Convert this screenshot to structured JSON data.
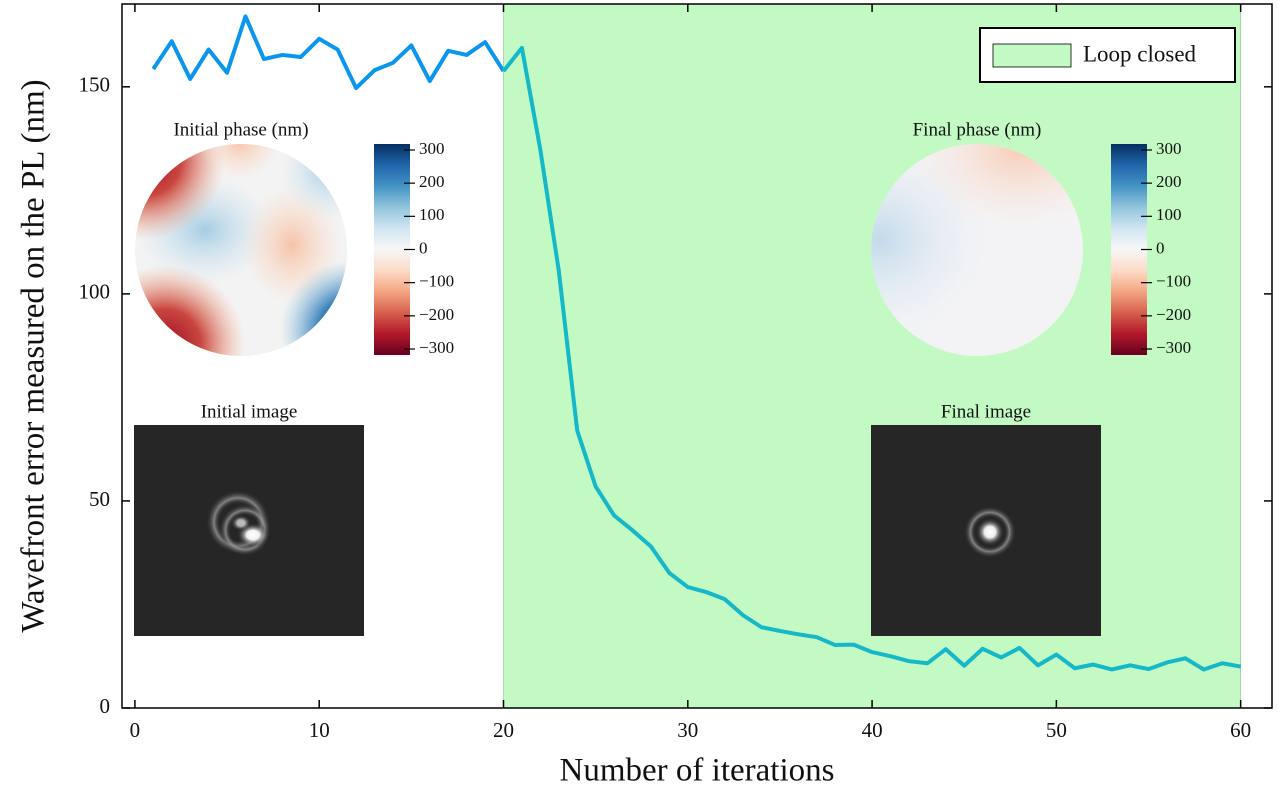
{
  "chart_data": {
    "type": "line",
    "xlabel": "Number of iterations",
    "ylabel": "Wavefront error measured on the PL (nm)",
    "xlim": [
      -0.7,
      61.7
    ],
    "ylim": [
      0,
      170
    ],
    "xticks": [
      0,
      10,
      20,
      30,
      40,
      50,
      60
    ],
    "yticks": [
      0,
      50,
      100,
      150
    ],
    "series": [
      {
        "color": "#0a96ee",
        "x": [
          1,
          2,
          3,
          4,
          5,
          6,
          7,
          8,
          9,
          10,
          11,
          12,
          13,
          14,
          15,
          16,
          17,
          18,
          19,
          20
        ],
        "values": [
          154.3,
          161,
          151.9,
          159,
          153.4,
          167,
          156.7,
          157.7,
          157.2,
          161.6,
          159,
          149.7,
          154,
          155.8,
          160,
          151.4,
          158.7,
          157.7,
          160.8,
          153.8
        ]
      },
      {
        "color": "#14b8c8",
        "x": [
          20,
          21,
          22,
          23,
          24,
          25,
          26,
          27,
          28,
          29,
          30,
          31,
          32,
          33,
          34,
          35,
          36,
          37,
          38,
          39,
          40,
          41,
          42,
          43,
          44,
          45,
          46,
          47,
          48,
          49,
          50,
          51,
          52,
          53,
          54,
          55,
          56,
          57,
          58,
          59,
          60
        ],
        "values": [
          153.8,
          159.4,
          134.8,
          105.6,
          67,
          53.5,
          46.5,
          42.9,
          39,
          32.6,
          29.2,
          28,
          26.3,
          22.4,
          19.5,
          18.6,
          17.8,
          17.1,
          15.2,
          15.3,
          13.5,
          12.5,
          11.3,
          10.8,
          14.2,
          10.2,
          14.3,
          12.2,
          14.5,
          10.3,
          12.9,
          9.6,
          10.5,
          9.3,
          10.3,
          9.4,
          11,
          12,
          9.3,
          10.8,
          10
        ]
      }
    ],
    "shaded_region": {
      "label": "Loop closed",
      "xmin": 20,
      "xmax": 60,
      "color": "#c3fac3"
    },
    "legend": "upper right",
    "insets": [
      {
        "title": "Initial phase (nm)",
        "kind": "phase",
        "colorbar_lim": [
          -318,
          318
        ],
        "colorbar_ticks": [
          {
            "value": 300,
            "label": "300"
          },
          {
            "value": 200,
            "label": "200"
          },
          {
            "value": 100,
            "label": "100"
          },
          {
            "value": 0,
            "label": "0"
          },
          {
            "value": -100,
            "label": "−100"
          },
          {
            "value": -200,
            "label": "−200"
          },
          {
            "value": -300,
            "label": "−300"
          }
        ]
      },
      {
        "title": "Final phase (nm)",
        "kind": "phase",
        "colorbar_lim": [
          -318,
          318
        ],
        "colorbar_ticks": [
          {
            "value": 300,
            "label": "300"
          },
          {
            "value": 200,
            "label": "200"
          },
          {
            "value": 100,
            "label": "100"
          },
          {
            "value": 0,
            "label": "0"
          },
          {
            "value": -100,
            "label": "−100"
          },
          {
            "value": -200,
            "label": "−200"
          },
          {
            "value": -300,
            "label": "−300"
          }
        ]
      },
      {
        "title": "Initial image",
        "kind": "image"
      },
      {
        "title": "Final image",
        "kind": "image"
      }
    ]
  }
}
